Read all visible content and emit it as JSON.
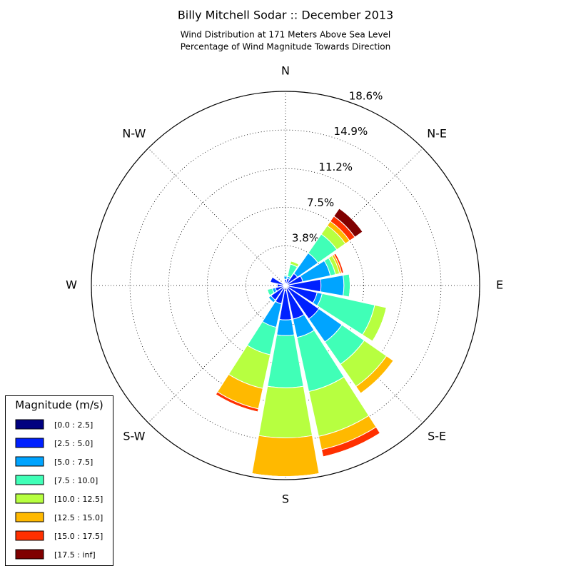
{
  "chart_data": {
    "type": "windrose",
    "title": "Billy Mitchell Sodar :: December 2013",
    "subtitle": [
      "Wind Distribution at 171 Meters Above Sea Level",
      "Percentage of Wind Magnitude Towards Direction"
    ],
    "categories": [
      "N",
      null,
      "N-E",
      null,
      "E",
      null,
      "S-E",
      null,
      "S",
      null,
      "S-W",
      null,
      "W",
      null,
      "N-W",
      null
    ],
    "ylim": [
      0,
      18.6
    ],
    "yticks": [
      {
        "value": 3.8,
        "label": "3.8%"
      },
      {
        "value": 7.5,
        "label": "7.5%"
      },
      {
        "value": 11.2,
        "label": "11.2%"
      },
      {
        "value": 14.9,
        "label": "14.9%"
      },
      {
        "value": 18.6,
        "label": "18.6%"
      }
    ],
    "grid": true,
    "legend_title": "Magnitude (m/s)",
    "legend_position": "lower-left",
    "series": [
      {
        "name": "[0.0 : 2.5]",
        "color": "#000080",
        "values": [
          0.2,
          0.2,
          0.2,
          0.2,
          0.3,
          0.3,
          0.3,
          0.3,
          0.5,
          0.3,
          0.2,
          0.2,
          0.2,
          0.2,
          0.1,
          0.1
        ]
      },
      {
        "name": "[2.5 : 5.0]",
        "color": "#0020ff",
        "values": [
          0.4,
          0.5,
          1.2,
          1.5,
          3.1,
          2.8,
          3.6,
          3.0,
          2.8,
          1.5,
          1.5,
          0.8,
          0.6,
          1.3,
          0.2,
          0.2
        ]
      },
      {
        "name": "[5.0 : 7.5]",
        "color": "#00a4ff",
        "values": [
          0.3,
          0.2,
          2.4,
          2.7,
          2.2,
          0.5,
          2.7,
          1.8,
          1.5,
          2.3,
          0.3,
          0.3,
          0,
          0,
          0,
          0
        ]
      },
      {
        "name": "[7.5 : 10.0]",
        "color": "#40ffb7",
        "values": [
          0.1,
          1.2,
          2.2,
          0.5,
          0.6,
          5.15,
          2.6,
          5.3,
          5.0,
          2.7,
          0,
          0.5,
          0,
          0,
          0,
          0
        ]
      },
      {
        "name": "[10.0 : 12.5]",
        "color": "#b7ff40",
        "values": [
          0,
          0.3,
          1.0,
          0.4,
          0,
          1.15,
          2.6,
          4.4,
          4.8,
          3.3,
          0,
          0,
          0,
          0,
          0,
          0
        ]
      },
      {
        "name": "[12.5 : 15.0]",
        "color": "#ffb900",
        "values": [
          0,
          0,
          0.5,
          0.2,
          0,
          0,
          0.8,
          1.3,
          3.7,
          2.0,
          0,
          0,
          0,
          0,
          0,
          0
        ]
      },
      {
        "name": "[15.0 : 17.5]",
        "color": "#ff3000",
        "values": [
          0,
          0,
          0.6,
          0.2,
          0,
          0,
          0,
          0.7,
          0,
          0.3,
          0,
          0,
          0,
          0,
          0,
          0
        ]
      },
      {
        "name": "[17.5 : inf]",
        "color": "#800000",
        "values": [
          0,
          0,
          0.9,
          0,
          0,
          0,
          0,
          0,
          0,
          0,
          0,
          0,
          0,
          0,
          0,
          0
        ]
      }
    ]
  }
}
